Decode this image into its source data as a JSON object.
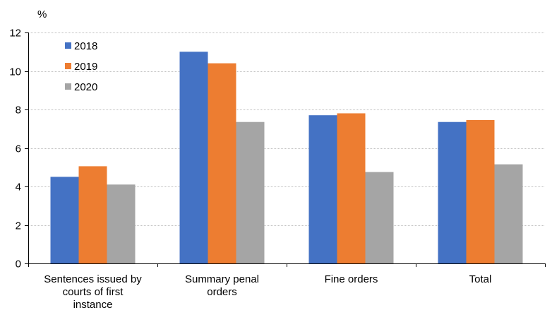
{
  "chart_data": {
    "type": "bar",
    "unit_label": "%",
    "categories": [
      [
        "Sentences issued by",
        "courts of first",
        "instance"
      ],
      [
        "Summary penal",
        "orders"
      ],
      [
        "Fine orders"
      ],
      [
        "Total"
      ]
    ],
    "series": [
      {
        "name": "2018",
        "color": "#4472C4",
        "values": [
          4.5,
          11.0,
          7.7,
          7.35
        ]
      },
      {
        "name": "2019",
        "color": "#ED7D31",
        "values": [
          5.05,
          10.4,
          7.8,
          7.45
        ]
      },
      {
        "name": "2020",
        "color": "#A5A5A5",
        "values": [
          4.1,
          7.35,
          4.75,
          5.15
        ]
      }
    ],
    "yticks": [
      "0",
      "2",
      "4",
      "6",
      "8",
      "10",
      "12"
    ],
    "ylim": [
      0,
      12
    ],
    "grid": true,
    "legend_position": "top-left"
  }
}
